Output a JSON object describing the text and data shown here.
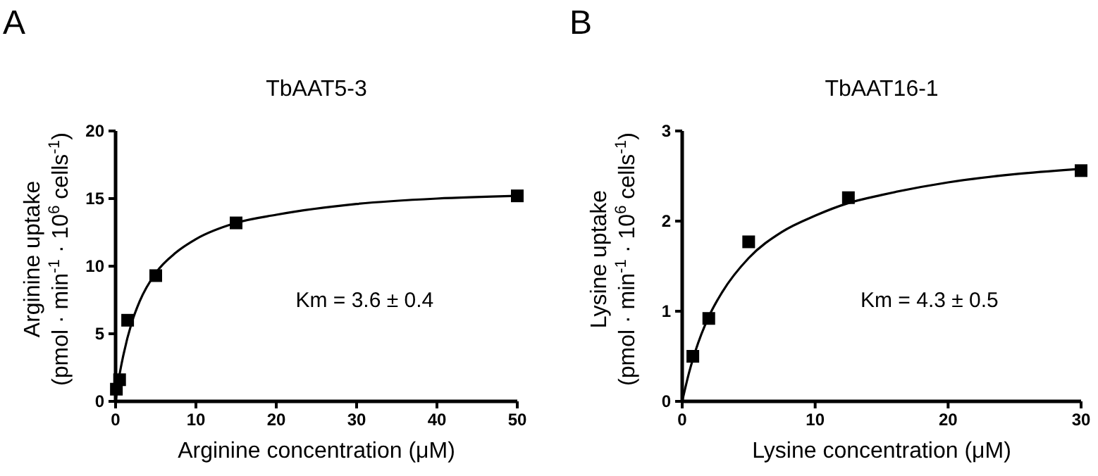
{
  "chart_data": [
    {
      "type": "scatter",
      "title": "TbAAT5-3",
      "xlabel": "Arginine concentration (μM)",
      "ylabel": "Arginine uptake\n(pmol · min$^{-1}$ · 10$^{6}$ cells$^{-1}$)",
      "annotations": [
        "A",
        "Km = 3.6 ± 0.4"
      ],
      "xlim": [
        0,
        50
      ],
      "xticks": [
        0,
        10,
        20,
        30,
        40,
        50
      ],
      "ylim": [
        0,
        20
      ],
      "yticks": [
        0,
        5,
        10,
        15,
        20
      ],
      "series": [
        {
          "color": "#000000",
          "marker": "square",
          "x": [
            0.1,
            0.5,
            1.5,
            5,
            15,
            50
          ],
          "values": [
            0.9,
            1.6,
            6.0,
            9.3,
            13.2,
            15.2
          ]
        },
        {
          "type": "line",
          "color": "#000000",
          "line_style": "solid",
          "x": [
            0,
            0.5,
            1,
            2,
            3,
            5,
            7.5,
            10,
            15,
            20,
            30,
            40,
            50
          ],
          "values": [
            0,
            2.0,
            3.5,
            5.8,
            7.4,
            9.5,
            11.0,
            12.0,
            13.2,
            13.8,
            14.6,
            15.0,
            15.2
          ]
        }
      ]
    },
    {
      "type": "scatter",
      "title": "TbAAT16-1",
      "xlabel": "Lysine concentration (μM)",
      "ylabel": "Lysine uptake\n(pmol · min$^{-1}$ · 10$^{6}$ cells$^{-1}$)",
      "annotations": [
        "B",
        "Km = 4.3 ± 0.5"
      ],
      "xlim": [
        0,
        30
      ],
      "xticks": [
        0,
        10,
        20,
        30
      ],
      "ylim": [
        0,
        3
      ],
      "yticks": [
        0,
        1,
        2,
        3
      ],
      "series": [
        {
          "color": "#000000",
          "marker": "square",
          "x": [
            0.8,
            2,
            5,
            12.5,
            30
          ],
          "values": [
            0.5,
            0.92,
            1.77,
            2.26,
            2.56
          ]
        },
        {
          "type": "line",
          "color": "#000000",
          "line_style": "solid",
          "x": [
            0,
            0.5,
            1,
            2,
            3,
            5,
            7.5,
            10,
            12.5,
            15,
            20,
            25,
            30
          ],
          "values": [
            0,
            0.31,
            0.56,
            0.94,
            1.21,
            1.59,
            1.88,
            2.06,
            2.2,
            2.29,
            2.43,
            2.52,
            2.58
          ]
        }
      ]
    }
  ]
}
